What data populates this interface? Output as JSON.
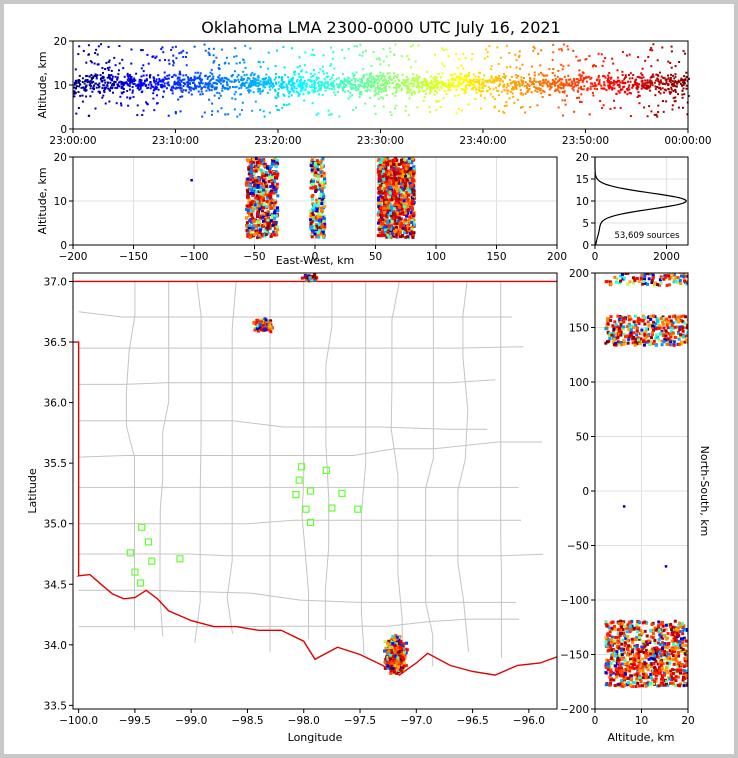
{
  "title": "Oklahoma LMA 2300-0000 UTC July 16, 2021",
  "chart_data": [
    {
      "id": "time-altitude",
      "type": "scatter",
      "ylabel": "Altitude, km",
      "xlabel": "",
      "x_ticks": [
        "23:00:00",
        "23:10:00",
        "23:20:00",
        "23:30:00",
        "23:40:00",
        "23:50:00",
        "00:00:00"
      ],
      "xlim_minutes": [
        0,
        60
      ],
      "ylim": [
        0,
        20
      ],
      "y_ticks": [
        0,
        10,
        20
      ],
      "colormap": "jet by time",
      "grid": false
    },
    {
      "id": "ew-altitude",
      "type": "scatter",
      "xlabel": "East-West, km",
      "ylabel": "Altitude, km",
      "xlim": [
        -200,
        200
      ],
      "x_ticks": [
        -200,
        -150,
        -100,
        -50,
        0,
        50,
        100,
        150,
        200
      ],
      "ylim": [
        0,
        20
      ],
      "y_ticks": [
        0,
        10,
        20
      ],
      "clusters_x": [
        -45,
        0,
        65
      ],
      "grid": true
    },
    {
      "id": "altitude-histogram",
      "type": "line",
      "xlim": [
        0,
        2600
      ],
      "x_ticks": [
        0,
        2000
      ],
      "ylim": [
        0,
        20
      ],
      "y_ticks": [
        0,
        5,
        10,
        15,
        20
      ],
      "peak_altitude_km": 10,
      "peak_count": 2550,
      "annotation": "53,609 sources",
      "grid": true
    },
    {
      "id": "plan-view",
      "type": "scatter",
      "xlabel": "Longitude",
      "ylabel": "Latitude",
      "xlim": [
        -100.05,
        -95.75
      ],
      "ylim": [
        33.47,
        37.07
      ],
      "x_ticks": [
        -100.0,
        -99.5,
        -99.0,
        -98.5,
        -98.0,
        -97.5,
        -97.0,
        -96.5,
        -96.0
      ],
      "y_ticks": [
        33.5,
        34.0,
        34.5,
        35.0,
        35.5,
        36.0,
        36.5,
        37.0
      ],
      "stations": [
        [
          -98.02,
          35.47
        ],
        [
          -97.8,
          35.44
        ],
        [
          -98.04,
          35.36
        ],
        [
          -97.94,
          35.27
        ],
        [
          -98.07,
          35.24
        ],
        [
          -97.66,
          35.25
        ],
        [
          -97.98,
          35.12
        ],
        [
          -97.75,
          35.13
        ],
        [
          -97.52,
          35.12
        ],
        [
          -97.94,
          35.01
        ],
        [
          -99.44,
          34.97
        ],
        [
          -99.38,
          34.85
        ],
        [
          -99.54,
          34.76
        ],
        [
          -99.35,
          34.69
        ],
        [
          -99.1,
          34.71
        ],
        [
          -99.5,
          34.6
        ],
        [
          -99.45,
          34.51
        ]
      ],
      "grid": false
    },
    {
      "id": "altitude-ns",
      "type": "scatter",
      "xlabel": "Altitude, km",
      "ylabel": "North-South, km",
      "xlim": [
        0,
        20
      ],
      "x_ticks": [
        0,
        10,
        20
      ],
      "ylim": [
        -200,
        200
      ],
      "y_ticks": [
        -200,
        -150,
        -100,
        -50,
        0,
        50,
        100,
        150,
        200
      ],
      "grid": true
    }
  ]
}
